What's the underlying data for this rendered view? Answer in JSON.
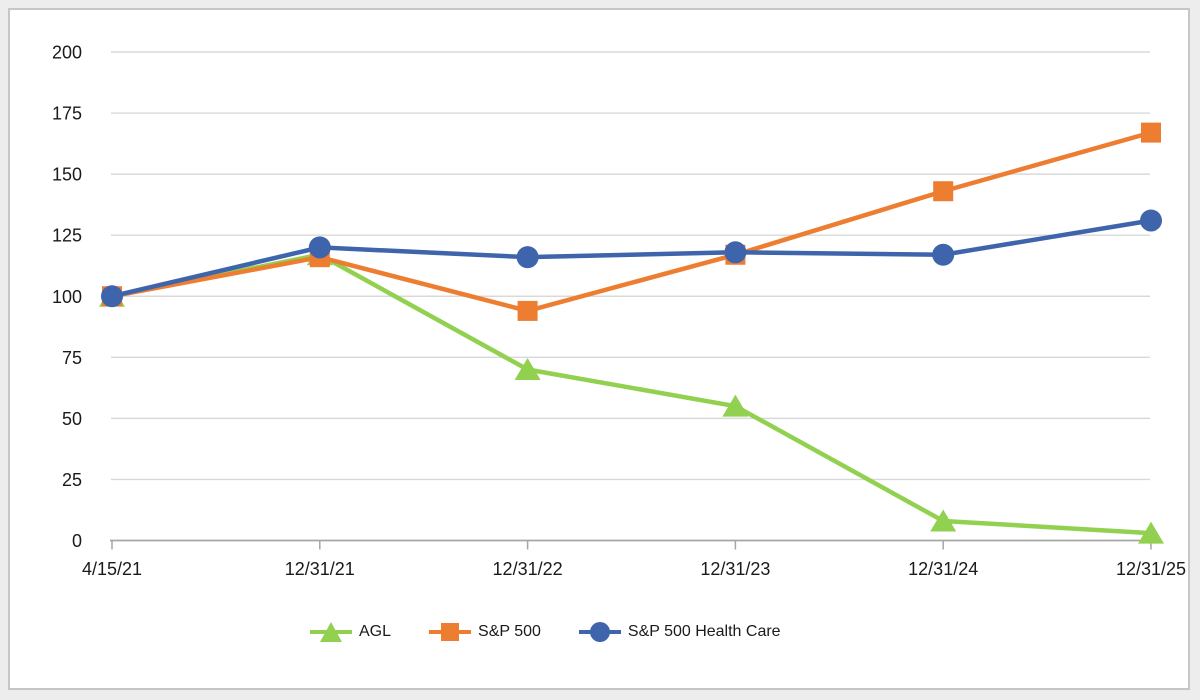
{
  "chart_data": {
    "type": "line",
    "title": "",
    "categories": [
      "4/15/21",
      "12/31/21",
      "12/31/22",
      "12/31/23",
      "12/31/24",
      "12/31/25"
    ],
    "series": [
      {
        "name": "AGL",
        "color": "#92D050",
        "marker": "triangle",
        "values": [
          100,
          117,
          70,
          55,
          8,
          3
        ]
      },
      {
        "name": "S&P 500",
        "color": "#ED7D31",
        "marker": "square",
        "values": [
          100,
          116,
          94,
          117,
          143,
          167
        ]
      },
      {
        "name": "S&P 500 Health Care",
        "color": "#3E65AB",
        "marker": "circle",
        "values": [
          100,
          120,
          116,
          118,
          117,
          131
        ]
      }
    ],
    "xlabel": "",
    "ylabel": "",
    "ylim": [
      0,
      200
    ],
    "ytick_step": 25,
    "yticks": [
      0,
      25,
      50,
      75,
      100,
      125,
      150,
      175,
      200
    ],
    "grid": true,
    "legend_position": "bottom",
    "colors": {
      "axis_line": "#A6A6A6",
      "gridline": "#D9D9D9",
      "tick_label": "#1A1A1A",
      "frame_border": "#C6C6C6",
      "plot_background": "#FFFFFF"
    }
  }
}
